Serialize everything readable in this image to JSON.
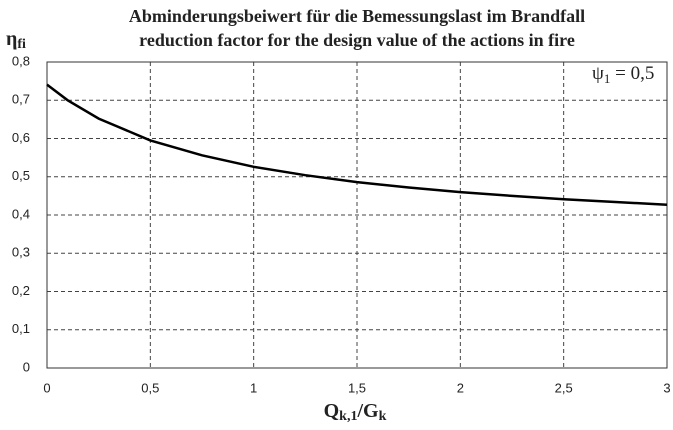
{
  "chart_data": {
    "type": "line",
    "title": "Abminderungsbeiwert für die Bemessungslast im Brandfall",
    "subtitle": "reduction factor for the design value of the actions in fire",
    "ylabel": [
      "η",
      "fi"
    ],
    "xlabel": [
      "Q",
      "k,1",
      "/G",
      "k"
    ],
    "annotation": [
      "ψ",
      "1",
      " =  0,5"
    ],
    "x": [
      0,
      0.1,
      0.25,
      0.5,
      0.75,
      1,
      1.25,
      1.5,
      1.75,
      2,
      2.25,
      2.5,
      2.75,
      3
    ],
    "values": [
      0.741,
      0.7,
      0.652,
      0.595,
      0.556,
      0.526,
      0.504,
      0.486,
      0.472,
      0.46,
      0.45,
      0.441,
      0.434,
      0.427
    ],
    "color": "#000000",
    "xlim": [
      0,
      3
    ],
    "xticks": [
      0,
      {
        "value": 0.5,
        "label": "0,5"
      },
      1,
      {
        "value": 1.5,
        "label": "1,5"
      },
      2,
      {
        "value": 2.5,
        "label": "2,5"
      },
      3
    ],
    "ylim": [
      0,
      0.8
    ],
    "yticks": [
      0,
      {
        "value": 0.1,
        "label": "0,1"
      },
      {
        "value": 0.2,
        "label": "0,2"
      },
      {
        "value": 0.3,
        "label": "0,3"
      },
      {
        "value": 0.4,
        "label": "0,4"
      },
      {
        "value": 0.5,
        "label": "0,5"
      },
      {
        "value": 0.6,
        "label": "0,6"
      },
      {
        "value": 0.7,
        "label": "0,7"
      },
      {
        "value": 0.8,
        "label": "0,8"
      }
    ],
    "grid": true
  }
}
